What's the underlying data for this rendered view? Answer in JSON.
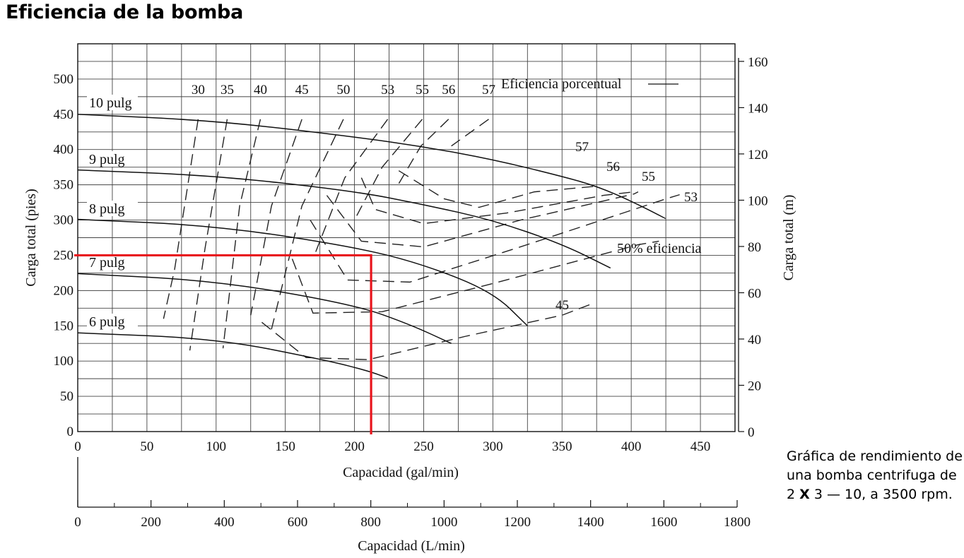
{
  "page_title": "Eficiencia de la bomba",
  "caption": {
    "before": "Gráfica de rendimiento de una bomba centrifuga de 2 ",
    "bold_x": "X",
    "after": " 3 — 10, a 3500 rpm."
  },
  "chart_data": {
    "type": "line",
    "xlabel": "Capacidad (gal/min)",
    "ylabel": "Carga total (pies)",
    "y2label": "Carga total (m)",
    "x2label": "Capacidad (L/min)",
    "xlim": [
      0,
      475
    ],
    "ylim": [
      0,
      550
    ],
    "y2lim": [
      0,
      167.6
    ],
    "x2lim": [
      0,
      1800
    ],
    "x_ticks": [
      0,
      50,
      100,
      150,
      200,
      250,
      300,
      350,
      400,
      450
    ],
    "y_ticks": [
      0,
      50,
      100,
      150,
      200,
      250,
      300,
      350,
      400,
      450,
      500
    ],
    "y2_ticks": [
      0,
      20,
      40,
      60,
      80,
      100,
      120,
      140,
      160
    ],
    "x2_ticks": [
      0,
      200,
      400,
      600,
      800,
      1000,
      1200,
      1400,
      1600,
      1800
    ],
    "grid": true,
    "impeller_curves": [
      {
        "name": "10 pulg",
        "x": [
          0,
          100,
          200,
          250,
          300,
          350,
          375,
          400,
          425
        ],
        "y": [
          450,
          441,
          418,
          404,
          386,
          362,
          348,
          327,
          302
        ]
      },
      {
        "name": "9 pulg",
        "x": [
          0,
          100,
          200,
          250,
          300,
          350,
          385
        ],
        "y": [
          371,
          363,
          341,
          322,
          300,
          266,
          232
        ]
      },
      {
        "name": "8 pulg",
        "x": [
          0,
          100,
          200,
          250,
          300,
          325
        ],
        "y": [
          301,
          292,
          262,
          237,
          198,
          150
        ]
      },
      {
        "name": "7 pulg",
        "x": [
          0,
          100,
          200,
          240,
          270
        ],
        "y": [
          224,
          214,
          180,
          152,
          125
        ]
      },
      {
        "name": "6 pulg",
        "x": [
          0,
          100,
          180,
          210,
          224
        ],
        "y": [
          140,
          132,
          101,
          86,
          76
        ]
      }
    ],
    "efficiency_top_labels": [
      "30",
      "35",
      "40",
      "45",
      "50",
      "53",
      "55",
      "56",
      "57"
    ],
    "efficiency_right_labels": [
      "57",
      "56",
      "55",
      "53"
    ],
    "efficiency_50_label": "50% eficiencia",
    "efficiency_45_label": "45",
    "efficiency_legend": "Eficiencia porcentual",
    "operating_point": {
      "x": 212,
      "y": 250
    }
  }
}
